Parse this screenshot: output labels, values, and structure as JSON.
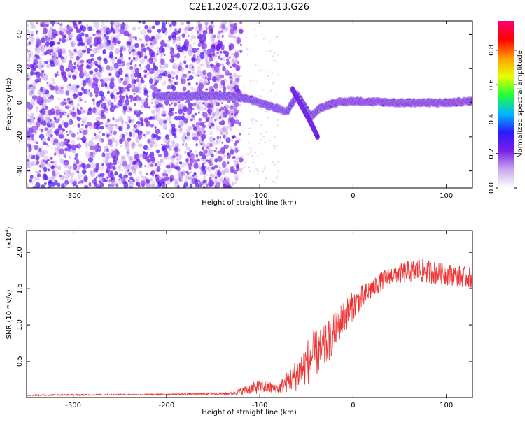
{
  "title": "C2E1.2024.072.03.13.G26",
  "chart_data": [
    {
      "type": "heatmap",
      "xlabel": "Height of straight line (km)",
      "ylabel": "Frequency (Hz)",
      "xlim": [
        -350,
        128
      ],
      "ylim": [
        -50,
        48
      ],
      "xticks": [
        -300,
        -200,
        -100,
        0,
        100
      ],
      "yticks": [
        -40,
        -20,
        0,
        20,
        40
      ],
      "colorbar": {
        "label": "Normalized spectral amplitude",
        "range": [
          0.0,
          0.97
        ],
        "ticks": [
          "0.0",
          "0.2",
          "0.4",
          "0.6",
          "0.8"
        ],
        "tick_values": [
          0.0,
          0.2,
          0.4,
          0.6,
          0.8
        ],
        "colormap": [
          "#ffffff",
          "#c9a7f0",
          "#7a1fe6",
          "#2a1bff",
          "#00b8ff",
          "#1fff3a",
          "#e8ff00",
          "#ff9d00",
          "#ff0000",
          "#ff0070"
        ]
      },
      "ridge": {
        "description_points": [
          {
            "x": -210,
            "y": 4
          },
          {
            "x": -170,
            "y": 4
          },
          {
            "x": -130,
            "y": 4
          },
          {
            "x": -110,
            "y": 2
          },
          {
            "x": -90,
            "y": -2
          },
          {
            "x": -70,
            "y": -5
          },
          {
            "x": -60,
            "y": 5
          },
          {
            "x": -45,
            "y": -8
          },
          {
            "x": -35,
            "y": -3
          },
          {
            "x": -20,
            "y": 0
          },
          {
            "x": 0,
            "y": 1
          },
          {
            "x": 50,
            "y": 0
          },
          {
            "x": 100,
            "y": 0
          },
          {
            "x": 128,
            "y": 1
          }
        ],
        "branch_points": [
          {
            "x": -65,
            "y": 8
          },
          {
            "x": -55,
            "y": -2
          },
          {
            "x": -45,
            "y": -12
          },
          {
            "x": -38,
            "y": -20
          }
        ],
        "noise_region_xlim": [
          -350,
          -120
        ]
      }
    },
    {
      "type": "line",
      "xlabel": "Height of straight line (km)",
      "ylabel": "SNR (10 * v/v)",
      "y_multiplier": "(x10",
      "y_multiplier_exp": "4",
      "xlim": [
        -350,
        128
      ],
      "ylim": [
        0,
        2.3
      ],
      "xticks": [
        -300,
        -200,
        -100,
        0,
        100
      ],
      "yticks": [
        0.5,
        1.0,
        1.5,
        2.0
      ],
      "ytick_labels": [
        "0.5",
        "1.0",
        "1.5",
        "2.0"
      ],
      "color": "#ee3333",
      "series": [
        {
          "envelope": [
            {
              "x": -350,
              "base": 0.03,
              "amp": 0.02
            },
            {
              "x": -200,
              "base": 0.04,
              "amp": 0.02
            },
            {
              "x": -130,
              "base": 0.05,
              "amp": 0.04
            },
            {
              "x": -100,
              "base": 0.12,
              "amp": 0.2
            },
            {
              "x": -80,
              "base": 0.1,
              "amp": 0.15
            },
            {
              "x": -60,
              "base": 0.25,
              "amp": 0.45
            },
            {
              "x": -45,
              "base": 0.45,
              "amp": 0.7
            },
            {
              "x": -30,
              "base": 0.6,
              "amp": 0.6
            },
            {
              "x": -15,
              "base": 0.95,
              "amp": 0.5
            },
            {
              "x": 0,
              "base": 1.2,
              "amp": 0.4
            },
            {
              "x": 20,
              "base": 1.45,
              "amp": 0.3
            },
            {
              "x": 40,
              "base": 1.65,
              "amp": 0.25
            },
            {
              "x": 70,
              "base": 1.7,
              "amp": 0.35
            },
            {
              "x": 100,
              "base": 1.65,
              "amp": 0.3
            },
            {
              "x": 128,
              "base": 1.6,
              "amp": 0.3
            }
          ]
        }
      ]
    }
  ]
}
